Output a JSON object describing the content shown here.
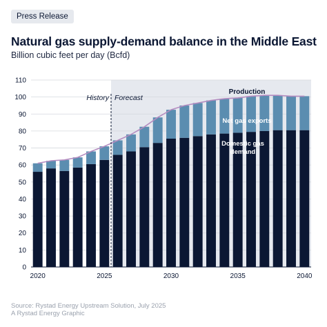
{
  "badge": "Press Release",
  "title": "Natural gas supply-demand balance in the Middle East",
  "subtitle": "Billion cubic feet per day (Bcfd)",
  "source_line1": "Source: Rystad Energy Upstream Solution, July 2025",
  "source_line2": "A Rystad Energy Graphic",
  "colors": {
    "domestic": "#0b1733",
    "exports": "#5b8db0",
    "production_line": "#b48cc0",
    "forecast_bg": "#e6e9ef",
    "grid": "#d4d8de"
  },
  "chart_data": {
    "type": "bar",
    "stacked": true,
    "title": "Natural gas supply-demand balance in the Middle East",
    "ylabel": "Billion cubic feet per day (Bcfd)",
    "ylim": [
      0,
      110
    ],
    "yticks": [
      0,
      10,
      20,
      30,
      40,
      50,
      60,
      70,
      80,
      90,
      100,
      110
    ],
    "xticks": [
      "2020",
      "2025",
      "2030",
      "2035",
      "2040"
    ],
    "grid": true,
    "categories": [
      "2020",
      "2021",
      "2022",
      "2023",
      "2024",
      "2025",
      "2026",
      "2027",
      "2028",
      "2029",
      "2030",
      "2031",
      "2032",
      "2033",
      "2034",
      "2035",
      "2036",
      "2037",
      "2038",
      "2039",
      "2040"
    ],
    "series": [
      {
        "name": "Domestic gas demand",
        "values": [
          56,
          58,
          56.5,
          58.5,
          60.5,
          63,
          66,
          68,
          70.5,
          73,
          75.5,
          76,
          77,
          78,
          78.5,
          79,
          79.5,
          80,
          80.5,
          80.5,
          80.5
        ]
      },
      {
        "name": "Net gas exports",
        "values": [
          5,
          4.5,
          6.5,
          6,
          7.5,
          8,
          8.5,
          10,
          12,
          15,
          17,
          19,
          19.5,
          20,
          20.5,
          20.5,
          21,
          21,
          20.5,
          20,
          20
        ]
      },
      {
        "name": "Production",
        "type": "line",
        "values": [
          61,
          62.5,
          63,
          64.5,
          68,
          71,
          74.5,
          78,
          82.5,
          88,
          92.5,
          95,
          96.5,
          98,
          99,
          99.5,
          100.5,
          101,
          101,
          100.5,
          100.5
        ]
      }
    ],
    "annotations": {
      "history": "History",
      "forecast": "Forecast",
      "divider_at": 2025.5
    }
  }
}
